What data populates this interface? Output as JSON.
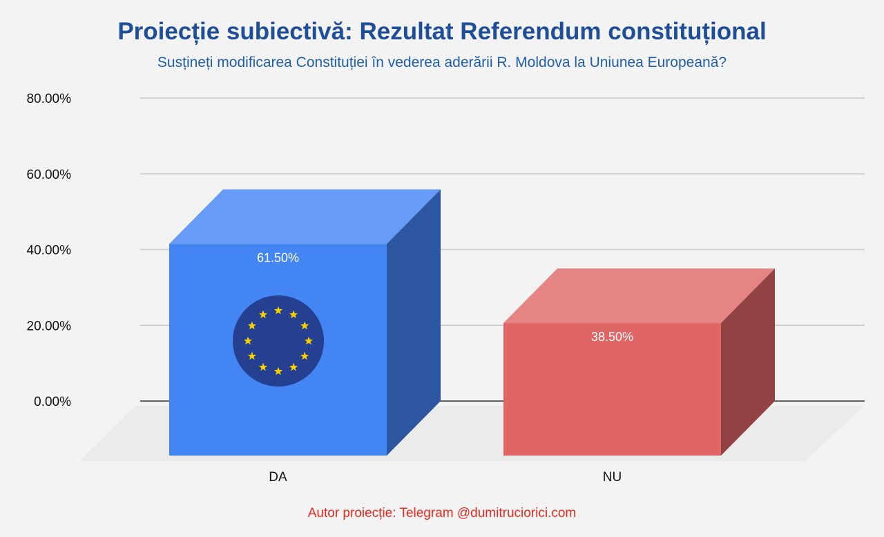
{
  "chart_data": {
    "type": "bar",
    "title": "Proiecție subiectivă: Rezultat Referendum constituțional",
    "subtitle": "Susțineți modificarea Constituției în vederea aderării R. Moldova la Uniunea Europeană?",
    "categories": [
      "DA",
      "NU"
    ],
    "values": [
      61.5,
      38.5
    ],
    "data_labels": [
      "61.50%",
      "38.50%"
    ],
    "ylim": [
      0,
      80
    ],
    "yticks": [
      0,
      20,
      40,
      60,
      80
    ],
    "ytick_labels": [
      "0.00%",
      "20.00%",
      "40.00%",
      "60.00%",
      "80.00%"
    ],
    "grid": true,
    "style": "3d-box",
    "colors": {
      "DA": {
        "front": "#4485f4",
        "top": "#669cf5",
        "side": "#2d56a0"
      },
      "NU": {
        "front": "#e06666",
        "top": "#e58484",
        "side": "#924242"
      }
    },
    "badge": {
      "category": "DA",
      "icon": "eu-flag-icon",
      "color": "#253f91",
      "star_color": "#f5d000"
    }
  },
  "footer": {
    "credit": "Autor proiecție: Telegram @dumitruciorici.com"
  }
}
